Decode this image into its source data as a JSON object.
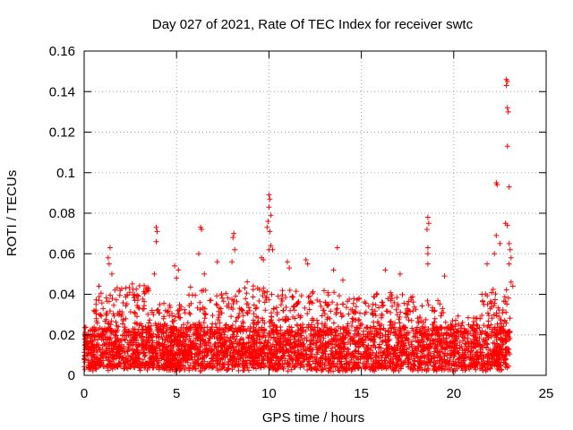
{
  "chart_data": {
    "type": "scatter",
    "title": "Day 027 of 2021, Rate Of TEC Index for receiver swtc",
    "xlabel": "GPS time / hours",
    "ylabel": "ROTI / TECUs",
    "xlim": [
      0,
      25
    ],
    "ylim": [
      0,
      0.16
    ],
    "x_ticks": [
      0,
      5,
      10,
      15,
      20,
      25
    ],
    "y_ticks": [
      0,
      0.02,
      0.04,
      0.06,
      0.08,
      0.1,
      0.12,
      0.14,
      0.16
    ],
    "x_tick_labels": [
      "0",
      "5",
      "10",
      "15",
      "20",
      "25"
    ],
    "y_tick_labels": [
      "0",
      "0.02",
      "0.04",
      "0.06",
      "0.08",
      "0.1",
      "0.12",
      "0.14",
      "0.16"
    ],
    "grid": true,
    "marker": "+",
    "color": "#ff0000",
    "series": [
      {
        "name": "ROTI",
        "description": "dense band of points between 0.005 and 0.03 across 0-23 h with sparse spikes",
        "points": [
          [
            1.4,
            0.063
          ],
          [
            1.3,
            0.058
          ],
          [
            1.35,
            0.055
          ],
          [
            1.5,
            0.05
          ],
          [
            0.8,
            0.044
          ],
          [
            3.9,
            0.073
          ],
          [
            3.95,
            0.071
          ],
          [
            3.9,
            0.066
          ],
          [
            3.8,
            0.05
          ],
          [
            4.9,
            0.054
          ],
          [
            5.1,
            0.052
          ],
          [
            5.0,
            0.048
          ],
          [
            6.3,
            0.073
          ],
          [
            6.35,
            0.072
          ],
          [
            6.2,
            0.06
          ],
          [
            6.5,
            0.05
          ],
          [
            8.1,
            0.07
          ],
          [
            8.05,
            0.068
          ],
          [
            8.15,
            0.062
          ],
          [
            8.0,
            0.056
          ],
          [
            7.2,
            0.056
          ],
          [
            9.6,
            0.058
          ],
          [
            9.7,
            0.057
          ],
          [
            10.0,
            0.089
          ],
          [
            10.05,
            0.087
          ],
          [
            10.0,
            0.083
          ],
          [
            10.1,
            0.079
          ],
          [
            9.95,
            0.076
          ],
          [
            9.9,
            0.073
          ],
          [
            10.05,
            0.071
          ],
          [
            10.1,
            0.064
          ],
          [
            10.0,
            0.062
          ],
          [
            10.2,
            0.062
          ],
          [
            11.0,
            0.056
          ],
          [
            11.1,
            0.053
          ],
          [
            12.0,
            0.057
          ],
          [
            12.1,
            0.055
          ],
          [
            13.7,
            0.063
          ],
          [
            13.5,
            0.052
          ],
          [
            14.0,
            0.047
          ],
          [
            16.3,
            0.052
          ],
          [
            17.1,
            0.05
          ],
          [
            18.6,
            0.078
          ],
          [
            18.65,
            0.075
          ],
          [
            18.55,
            0.072
          ],
          [
            18.6,
            0.063
          ],
          [
            18.6,
            0.06
          ],
          [
            18.6,
            0.055
          ],
          [
            19.5,
            0.049
          ],
          [
            22.3,
            0.095
          ],
          [
            22.35,
            0.094
          ],
          [
            22.3,
            0.069
          ],
          [
            22.5,
            0.065
          ],
          [
            22.2,
            0.06
          ],
          [
            21.8,
            0.055
          ],
          [
            22.85,
            0.146
          ],
          [
            22.9,
            0.145
          ],
          [
            22.85,
            0.143
          ],
          [
            22.9,
            0.132
          ],
          [
            22.95,
            0.13
          ],
          [
            22.9,
            0.113
          ],
          [
            23.0,
            0.093
          ],
          [
            22.8,
            0.075
          ],
          [
            22.9,
            0.074
          ],
          [
            23.0,
            0.065
          ],
          [
            23.05,
            0.062
          ],
          [
            23.1,
            0.058
          ],
          [
            23.0,
            0.055
          ],
          [
            23.1,
            0.046
          ],
          [
            23.2,
            0.044
          ]
        ]
      }
    ]
  }
}
